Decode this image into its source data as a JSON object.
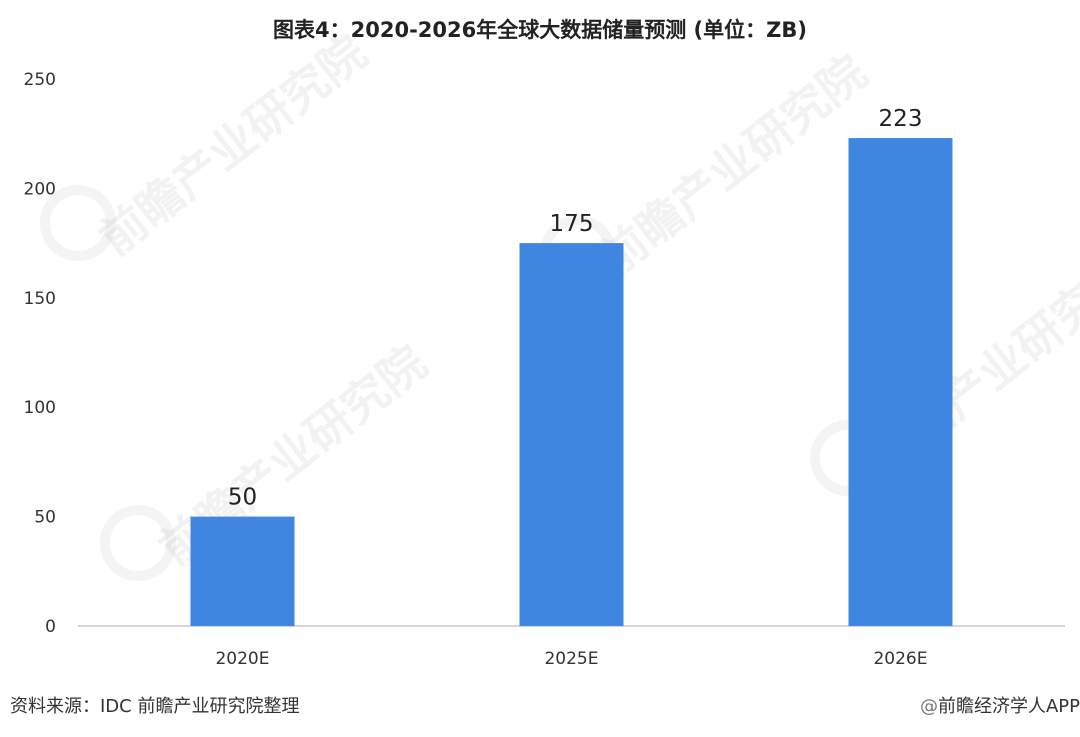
{
  "title": "图表4：2020-2026年全球大数据储量预测 (单位：ZB)",
  "source": "资料来源：IDC 前瞻产业研究院整理",
  "brand": "前瞻经济学人APP",
  "brand_at": "@",
  "watermark": "前瞻产业研究院",
  "colors": {
    "bar": "#3f86e0",
    "axis": "#c8c8c8",
    "text": "#333333"
  },
  "chart_data": {
    "type": "bar",
    "title": "图表4：2020-2026年全球大数据储量预测 (单位：ZB)",
    "categories": [
      "2020E",
      "2025E",
      "2026E"
    ],
    "values": [
      50,
      175,
      223
    ],
    "ylim": [
      0,
      250
    ],
    "yticks": [
      0,
      50,
      100,
      150,
      200,
      250
    ],
    "xlabel": "",
    "ylabel": "",
    "grid": false,
    "data_labels": true
  }
}
